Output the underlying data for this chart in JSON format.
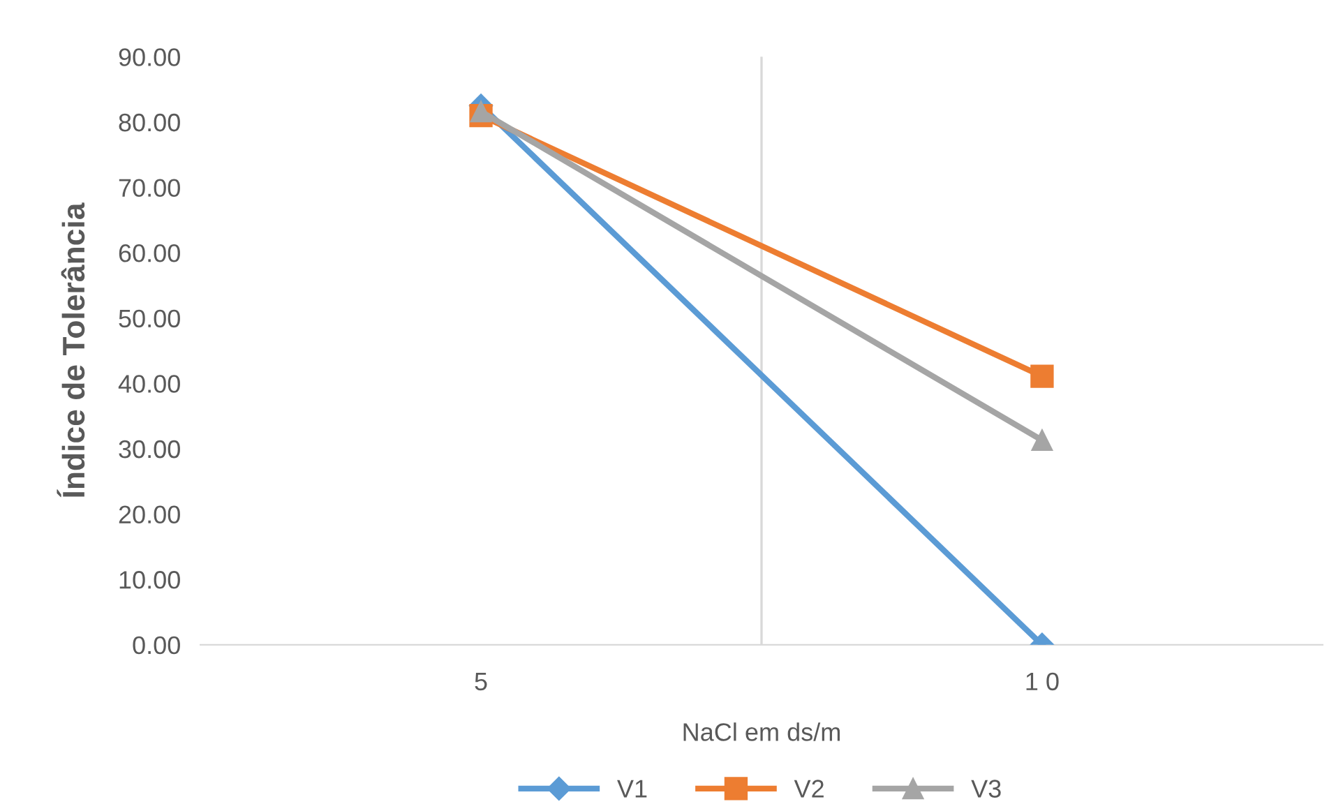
{
  "chart_data": {
    "type": "line",
    "xlabel": "NaCl em ds/m",
    "ylabel": "Índice de Tolerância",
    "categories": [
      "5",
      "1 0"
    ],
    "series": [
      {
        "name": "V1",
        "color": "#5b9bd5",
        "marker": "diamond",
        "values": [
          82.5,
          0.0
        ]
      },
      {
        "name": "V2",
        "color": "#ed7d31",
        "marker": "square",
        "values": [
          81.0,
          41.1
        ]
      },
      {
        "name": "V3",
        "color": "#a5a5a5",
        "marker": "triangle",
        "values": [
          81.6,
          31.3
        ]
      }
    ],
    "ylim": [
      0,
      90
    ],
    "yticks": [
      {
        "value": 0,
        "label": "0.00"
      },
      {
        "value": 10,
        "label": "10.00"
      },
      {
        "value": 20,
        "label": "20.00"
      },
      {
        "value": 30,
        "label": "30.00"
      },
      {
        "value": 40,
        "label": "40.00"
      },
      {
        "value": 50,
        "label": "50.00"
      },
      {
        "value": 60,
        "label": "60.00"
      },
      {
        "value": 70,
        "label": "70.00"
      },
      {
        "value": 80,
        "label": "80.00"
      },
      {
        "value": 90,
        "label": "90.00"
      }
    ],
    "grid": "x",
    "legend": "bottom",
    "line_style": "solid"
  }
}
